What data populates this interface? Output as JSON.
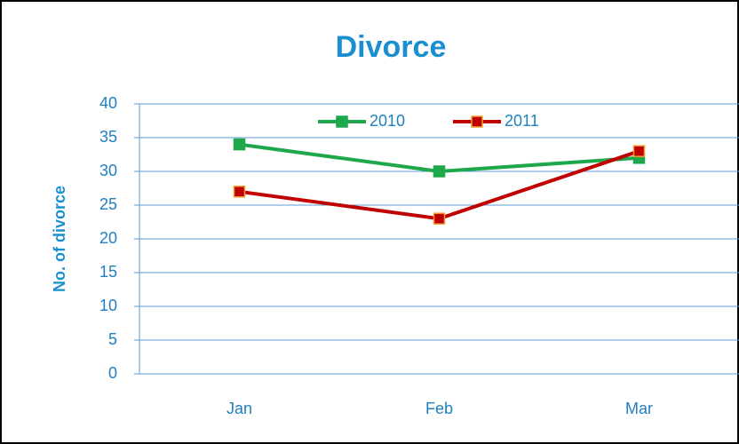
{
  "chart_data": {
    "type": "line",
    "title": "Divorce",
    "y_label": "No. of divorce",
    "categories": [
      "Jan",
      "Feb",
      "Mar"
    ],
    "series": [
      {
        "name": "2010",
        "color": "#1ea84b",
        "values": [
          34,
          30,
          32
        ]
      },
      {
        "name": "2011",
        "color": "#c00000",
        "values": [
          27,
          23,
          33
        ]
      }
    ],
    "ylim": [
      0,
      40
    ],
    "yticks": [
      0,
      5,
      10,
      15,
      20,
      25,
      30,
      35,
      40
    ],
    "grid": true,
    "legend": "top"
  }
}
